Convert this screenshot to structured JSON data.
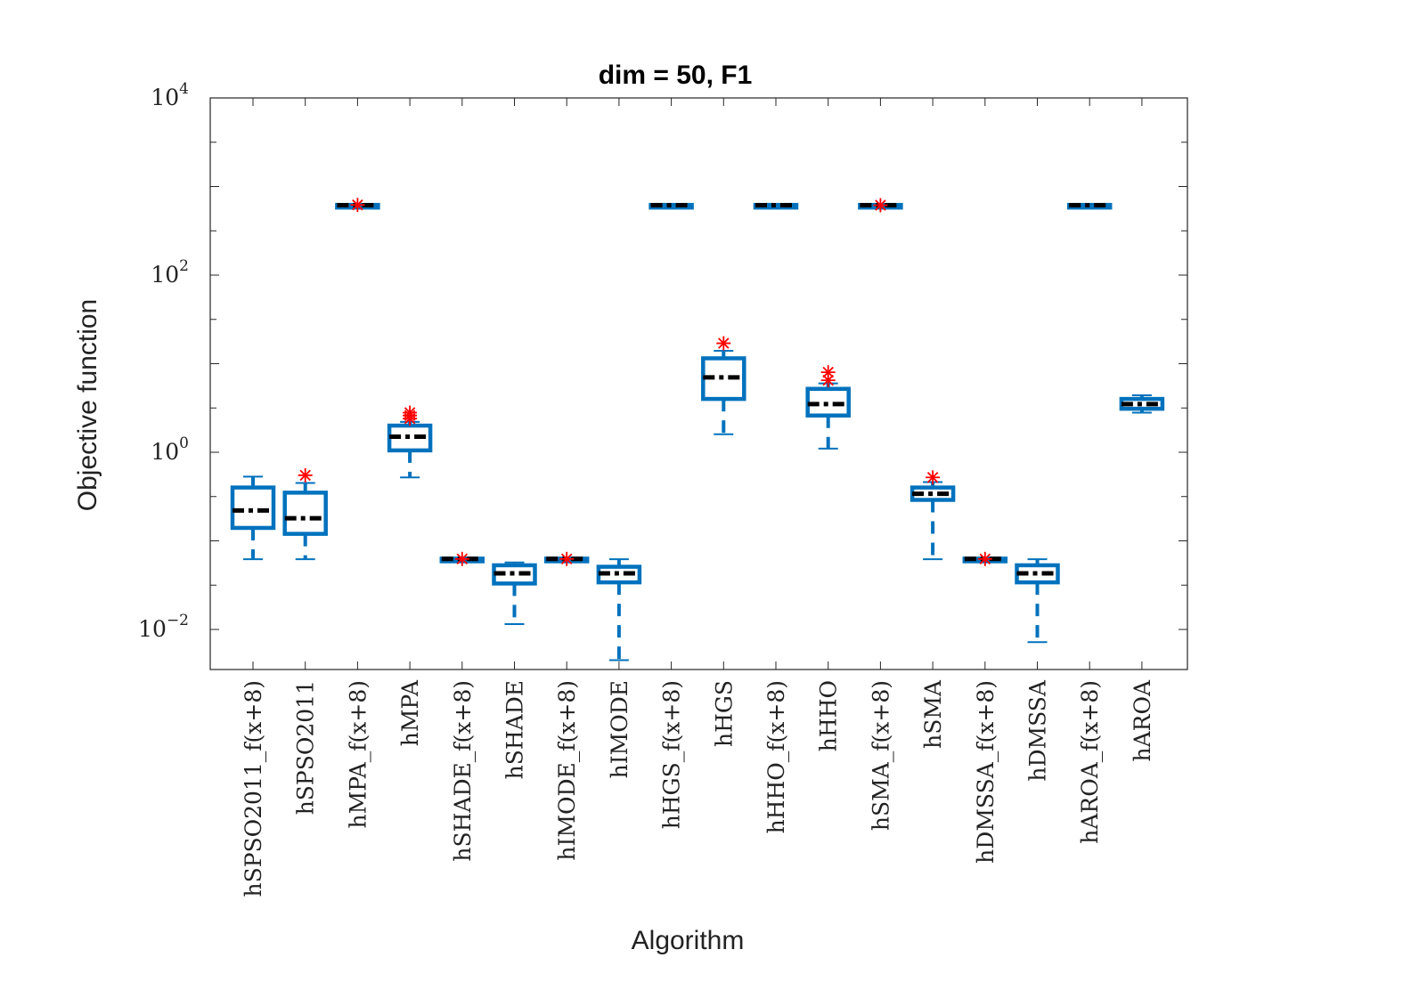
{
  "chart_data": {
    "type": "box",
    "title": "dim = 50,  F1",
    "xlabel": "Algorithm",
    "ylabel": "Objective function",
    "yscale": "log",
    "ylim": [
      0.0045,
      10000
    ],
    "yticks": [
      {
        "base": "10",
        "exp": "4",
        "value": 10000
      },
      {
        "base": "10",
        "exp": "2",
        "value": 100
      },
      {
        "base": "10",
        "exp": "0",
        "value": 1
      },
      {
        "base": "10",
        "exp": "−2",
        "value": 0.01
      }
    ],
    "categories": [
      "hSPSO2011_f(x+8)",
      "hSPSO2011",
      "hMPA_f(x+8)",
      "hMPA",
      "hSHADE_f(x+8)",
      "hSHADE",
      "hIMODE_f(x+8)",
      "hIMODE",
      "hHGS_f(x+8)",
      "hHGS",
      "hHHO_f(x+8)",
      "hHHO",
      "hSMA_f(x+8)",
      "hSMA",
      "hDMSSA_f(x+8)",
      "hDMSSA",
      "hAROA_f(x+8)",
      "hAROA"
    ],
    "boxes": [
      {
        "whisker_low": 0.062,
        "q1": 0.14,
        "median": 0.22,
        "q3": 0.4,
        "whisker_high": 0.53,
        "outliers": []
      },
      {
        "whisker_low": 0.062,
        "q1": 0.12,
        "median": 0.18,
        "q3": 0.35,
        "whisker_high": 0.45,
        "outliers": [
          0.55
        ]
      },
      {
        "whisker_low": 600,
        "q1": 610,
        "median": 615,
        "q3": 620,
        "whisker_high": 625,
        "outliers": [
          620
        ]
      },
      {
        "whisker_low": 0.52,
        "q1": 1.05,
        "median": 1.5,
        "q3": 2.0,
        "whisker_high": 2.2,
        "outliers": [
          2.4,
          2.6,
          2.8
        ]
      },
      {
        "whisker_low": 0.0615,
        "q1": 0.062,
        "median": 0.0625,
        "q3": 0.063,
        "whisker_high": 0.0635,
        "outliers": [
          0.0625
        ]
      },
      {
        "whisker_low": 0.0115,
        "q1": 0.033,
        "median": 0.043,
        "q3": 0.053,
        "whisker_high": 0.057,
        "outliers": []
      },
      {
        "whisker_low": 0.0615,
        "q1": 0.062,
        "median": 0.0625,
        "q3": 0.063,
        "whisker_high": 0.0635,
        "outliers": [
          0.0625
        ]
      },
      {
        "whisker_low": 0.0045,
        "q1": 0.034,
        "median": 0.043,
        "q3": 0.051,
        "whisker_high": 0.062,
        "outliers": []
      },
      {
        "whisker_low": 605,
        "q1": 610,
        "median": 615,
        "q3": 620,
        "whisker_high": 625,
        "outliers": []
      },
      {
        "whisker_low": 1.6,
        "q1": 4.0,
        "median": 7.0,
        "q3": 11.5,
        "whisker_high": 14.0,
        "outliers": [
          17.0
        ]
      },
      {
        "whisker_low": 605,
        "q1": 610,
        "median": 615,
        "q3": 620,
        "whisker_high": 625,
        "outliers": []
      },
      {
        "whisker_low": 1.1,
        "q1": 2.6,
        "median": 3.5,
        "q3": 5.2,
        "whisker_high": 6.0,
        "outliers": [
          6.5,
          8.0
        ]
      },
      {
        "whisker_low": 605,
        "q1": 610,
        "median": 615,
        "q3": 620,
        "whisker_high": 625,
        "outliers": [
          615
        ]
      },
      {
        "whisker_low": 0.062,
        "q1": 0.29,
        "median": 0.34,
        "q3": 0.4,
        "whisker_high": 0.46,
        "outliers": [
          0.52
        ]
      },
      {
        "whisker_low": 0.0615,
        "q1": 0.062,
        "median": 0.0625,
        "q3": 0.063,
        "whisker_high": 0.0635,
        "outliers": [
          0.0625
        ]
      },
      {
        "whisker_low": 0.0072,
        "q1": 0.034,
        "median": 0.043,
        "q3": 0.053,
        "whisker_high": 0.062,
        "outliers": []
      },
      {
        "whisker_low": 605,
        "q1": 610,
        "median": 615,
        "q3": 620,
        "whisker_high": 625,
        "outliers": []
      },
      {
        "whisker_low": 2.8,
        "q1": 3.1,
        "median": 3.5,
        "q3": 4.0,
        "whisker_high": 4.4,
        "outliers": []
      }
    ],
    "colors": {
      "box": "#0072BD",
      "median": "#000000",
      "outlier": "#FF0000",
      "axis": "#262626"
    }
  }
}
